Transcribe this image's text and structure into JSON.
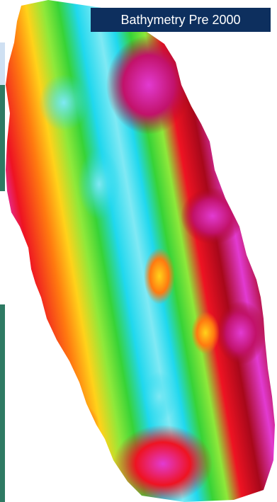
{
  "map": {
    "title": "Bathymetry Pre 2000",
    "colors": {
      "title_bg": "#0d2f5e",
      "title_text": "#ffffff",
      "background": "#ffffff",
      "magenta": "#e23ad1",
      "dark_red": "#a8081b",
      "red": "#ee1322",
      "orange": "#ff7a10",
      "yellow": "#ffd21a",
      "green": "#37d337",
      "lime": "#8ee83a",
      "cyan": "#20d8ee",
      "light_cyan": "#7fe9f4"
    }
  }
}
